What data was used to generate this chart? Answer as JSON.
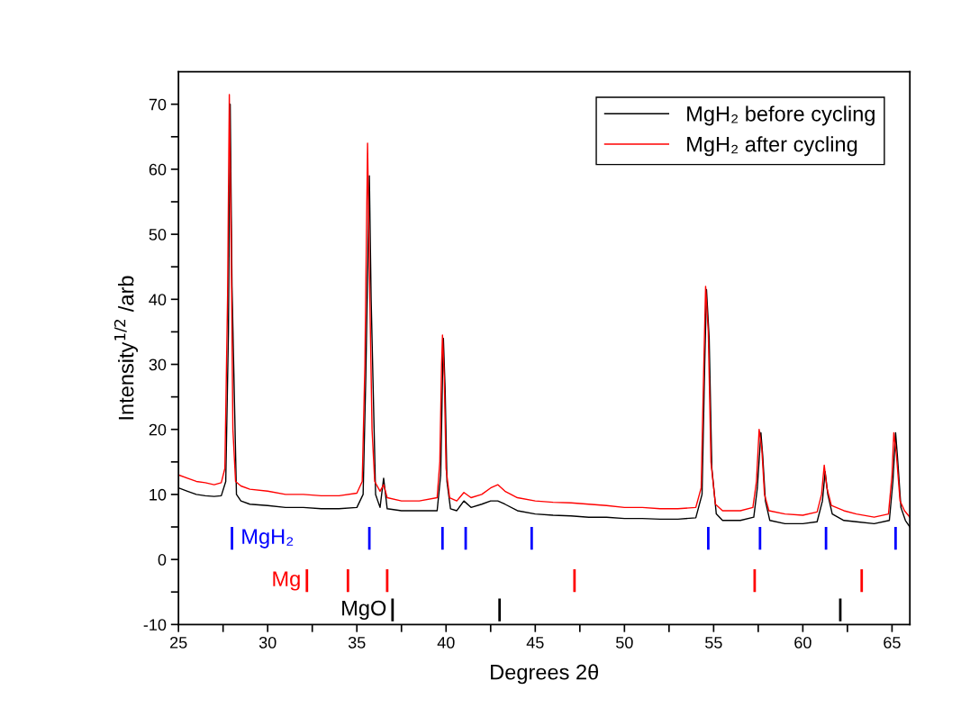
{
  "chart_data": {
    "type": "line",
    "xlabel": "Degrees 2θ",
    "ylabel": "Intensity$^{1/2}$ /arb",
    "xlim": [
      25,
      66
    ],
    "ylim": [
      -10,
      75
    ],
    "xticks": [
      25,
      {
        "value": 27.5,
        "label": null
      },
      30,
      {
        "value": 32.5,
        "label": null
      },
      35,
      {
        "value": 37.5,
        "label": null
      },
      40,
      {
        "value": 42.5,
        "label": null
      },
      45,
      {
        "value": 47.5,
        "label": null
      },
      50,
      {
        "value": 52.5,
        "label": null
      },
      55,
      {
        "value": 57.5,
        "label": null
      },
      60,
      {
        "value": 62.5,
        "label": null
      },
      65
    ],
    "yticks": [
      -10,
      {
        "value": -5,
        "label": null
      },
      0,
      {
        "value": 5,
        "label": null
      },
      10,
      {
        "value": 15,
        "label": null
      },
      20,
      {
        "value": 25,
        "label": null
      },
      30,
      {
        "value": 35,
        "label": null
      },
      40,
      {
        "value": 45,
        "label": null
      },
      50,
      {
        "value": 55,
        "label": null
      },
      60,
      {
        "value": 65,
        "label": null
      },
      70
    ],
    "grid": false,
    "legend": "top right",
    "line_style": "solid",
    "marker": "none",
    "series": [
      {
        "name": "MgH₂ before cycling",
        "color": "#000000",
        "type": "line",
        "x": [
          25,
          25.5,
          26,
          26.5,
          27,
          27.4,
          27.65,
          27.8,
          27.9,
          28.0,
          28.25,
          28.5,
          29,
          30,
          31,
          32,
          33,
          34,
          35,
          35.35,
          35.5,
          35.7,
          35.8,
          36.05,
          36.3,
          36.5,
          36.7,
          37.5,
          38.5,
          39.5,
          39.7,
          39.8,
          39.85,
          39.95,
          40.05,
          40.25,
          40.6,
          41,
          41.4,
          42,
          42.5,
          42.9,
          43.3,
          44,
          45,
          46,
          47,
          48,
          49,
          50,
          51,
          52,
          53,
          54,
          54.35,
          54.5,
          54.6,
          54.75,
          54.9,
          55.15,
          55.5,
          56.5,
          57.25,
          57.45,
          57.65,
          57.75,
          57.9,
          58.15,
          59,
          60,
          60.8,
          61.1,
          61.25,
          61.4,
          61.65,
          62.3,
          63,
          64,
          64.85,
          65.05,
          65.2,
          65.3,
          65.5,
          65.75,
          66
        ],
        "values": [
          11,
          10.5,
          10,
          9.8,
          9.7,
          9.8,
          12,
          35,
          70,
          42,
          10,
          9,
          8.5,
          8.3,
          8,
          8,
          7.8,
          7.8,
          8,
          10,
          28,
          59,
          40,
          10,
          8,
          12.5,
          7.8,
          7.5,
          7.5,
          7.5,
          13,
          28,
          34,
          26,
          12,
          7.8,
          7.5,
          9,
          8,
          8.5,
          9,
          9,
          8.5,
          7.5,
          7,
          6.8,
          6.7,
          6.5,
          6.5,
          6.3,
          6.3,
          6.2,
          6.2,
          6.4,
          10,
          30,
          41.5,
          34,
          14,
          7,
          6,
          6,
          6.5,
          11,
          19.5,
          16,
          9,
          6,
          5.5,
          5.5,
          5.8,
          9,
          13.5,
          10,
          7,
          6,
          5.8,
          5.5,
          6,
          12,
          19.5,
          16,
          8,
          6,
          5
        ]
      },
      {
        "name": "MgH₂ after cycling",
        "color": "#ff0000",
        "type": "line",
        "x": [
          25,
          25.5,
          26,
          26.5,
          27,
          27.4,
          27.6,
          27.75,
          27.85,
          27.95,
          28.05,
          28.2,
          28.5,
          29,
          30,
          31,
          32,
          33,
          34,
          35,
          35.3,
          35.45,
          35.6,
          35.7,
          35.85,
          36,
          36.3,
          36.5,
          36.7,
          37.5,
          38.5,
          39.5,
          39.65,
          39.75,
          39.8,
          39.9,
          40,
          40.2,
          40.6,
          41,
          41.4,
          42,
          42.5,
          42.9,
          43.3,
          44,
          45,
          46,
          47,
          48,
          49,
          50,
          51,
          52,
          53,
          54,
          54.3,
          54.45,
          54.55,
          54.7,
          54.85,
          55.1,
          55.5,
          56.5,
          57.2,
          57.4,
          57.55,
          57.7,
          57.85,
          58.1,
          59,
          60,
          60.8,
          61.05,
          61.2,
          61.35,
          61.6,
          62.3,
          63,
          64,
          64.8,
          65,
          65.1,
          65.25,
          65.45,
          65.7,
          66
        ],
        "values": [
          13,
          12.5,
          12,
          11.8,
          11.5,
          11.8,
          14,
          40,
          71.5,
          50,
          20,
          12,
          11.3,
          10.8,
          10.5,
          10,
          10,
          9.8,
          9.8,
          10.2,
          12,
          30,
          64,
          45,
          20,
          12,
          10.5,
          11.5,
          9.5,
          9,
          9,
          9.5,
          15,
          30,
          34.5,
          28,
          14,
          9.5,
          9,
          10.3,
          9.5,
          10,
          11,
          11.5,
          10.5,
          9.5,
          9,
          8.8,
          8.7,
          8.5,
          8.3,
          8,
          8,
          7.8,
          7.8,
          8,
          11,
          30,
          42,
          35,
          15,
          8.5,
          7.5,
          7.5,
          8,
          12,
          20,
          17,
          10,
          7.5,
          7,
          6.8,
          7.3,
          10,
          14.5,
          11,
          8.3,
          7.5,
          7,
          6.5,
          7,
          13,
          19.5,
          16,
          9,
          7.5,
          6.5
        ]
      },
      {
        "name": "MgH₂",
        "color": "#0000ff",
        "type": "bar",
        "x": [
          28.0,
          35.7,
          39.8,
          41.1,
          44.8,
          54.7,
          57.6,
          61.3,
          65.2
        ],
        "base": [
          1.5,
          1.5,
          1.5,
          1.5,
          1.5,
          1.5,
          1.5,
          1.5,
          1.5
        ],
        "values": [
          3.5,
          3.5,
          3.5,
          3.5,
          3.5,
          3.5,
          3.5,
          3.5,
          3.5
        ]
      },
      {
        "name": "Mg",
        "color": "#ff0000",
        "type": "bar",
        "x": [
          32.2,
          34.5,
          36.7,
          47.2,
          57.3,
          63.3
        ],
        "base": [
          -5,
          -5,
          -5,
          -5,
          -5,
          -5
        ],
        "values": [
          3.5,
          3.5,
          3.5,
          3.5,
          3.5,
          3.5
        ]
      },
      {
        "name": "MgO",
        "color": "#000000",
        "type": "bar",
        "x": [
          37.0,
          43.0,
          62.1
        ],
        "base": [
          -9.5,
          -9.5,
          -9.5
        ],
        "values": [
          3.5,
          3.5,
          3.5
        ]
      }
    ]
  }
}
